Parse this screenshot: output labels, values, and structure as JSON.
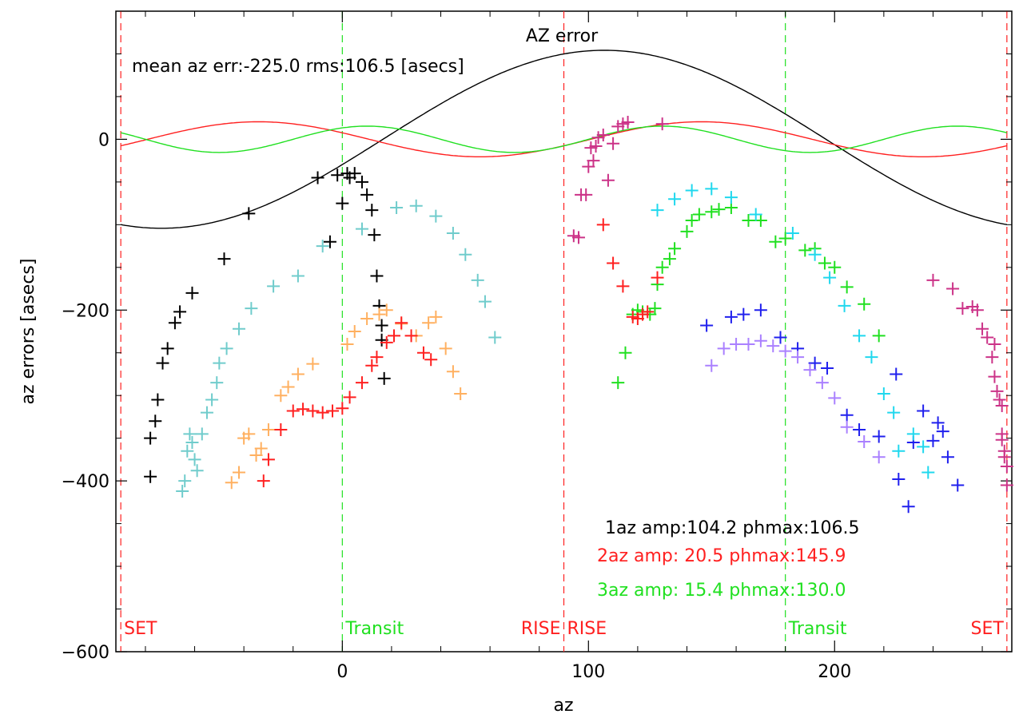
{
  "chart_data": {
    "type": "scatter",
    "title": "AZ error",
    "xlabel": "az",
    "ylabel": "az errors [asecs]",
    "xlim": [
      -92,
      272
    ],
    "ylim": [
      -600,
      150
    ],
    "xticks": [
      0,
      100,
      200
    ],
    "yticks": [
      -600,
      -400,
      -200,
      0
    ],
    "annotation": "mean az err:-225.0 rms:106.5 [asecs]",
    "legend": [
      {
        "text": "1az amp:104.2 phmax:106.5",
        "color": "#000000"
      },
      {
        "text": "2az amp: 20.5 phmax:145.9",
        "color": "#ff2020"
      },
      {
        "text": "3az amp: 15.4 phmax:130.0",
        "color": "#20e020"
      }
    ],
    "harmonics": [
      {
        "k": 1,
        "amp": 104.2,
        "phmax": 106.5,
        "color": "#000000"
      },
      {
        "k": 2,
        "amp": 20.5,
        "phmax": 145.9,
        "color": "#ff2020"
      },
      {
        "k": 3,
        "amp": 15.4,
        "phmax": 130.0,
        "color": "#20e020"
      }
    ],
    "vlines": [
      {
        "x": -90,
        "color": "#ff2020",
        "label": "SET",
        "label_side": "right"
      },
      {
        "x": 0,
        "color": "#20e020",
        "label": "Transit",
        "label_side": "right"
      },
      {
        "x": 90,
        "color": "#ff2020",
        "label": "RISE",
        "label_side": "left"
      },
      {
        "x": 90,
        "color": "#ff2020",
        "label": "RISE",
        "label_side": "right"
      },
      {
        "x": 180,
        "color": "#20e020",
        "label": "Transit",
        "label_side": "right"
      },
      {
        "x": 270,
        "color": "#ff2020",
        "label": "SET",
        "label_side": "left"
      }
    ],
    "series": [
      {
        "color": "#000000",
        "points": [
          [
            -78,
            -395
          ],
          [
            -78,
            -350
          ],
          [
            -76,
            -330
          ],
          [
            -75,
            -305
          ],
          [
            -73,
            -262
          ],
          [
            -71,
            -245
          ],
          [
            -68,
            -215
          ],
          [
            -66,
            -202
          ],
          [
            -61,
            -180
          ],
          [
            -48,
            -140
          ],
          [
            -38,
            -87
          ],
          [
            -10,
            -45
          ],
          [
            -2,
            -42
          ],
          [
            5,
            -40
          ],
          [
            8,
            -50
          ],
          [
            10,
            -65
          ],
          [
            12,
            -83
          ],
          [
            13,
            -112
          ],
          [
            14,
            -160
          ],
          [
            15,
            -195
          ],
          [
            16,
            -218
          ],
          [
            16,
            -235
          ],
          [
            17,
            -280
          ],
          [
            -5,
            -120
          ],
          [
            0,
            -75
          ],
          [
            2,
            -40
          ],
          [
            3,
            -45
          ]
        ]
      },
      {
        "color": "#70cccc",
        "points": [
          [
            -65,
            -412
          ],
          [
            -64,
            -400
          ],
          [
            -63,
            -365
          ],
          [
            -62,
            -345
          ],
          [
            -61,
            -355
          ],
          [
            -60,
            -375
          ],
          [
            -59,
            -388
          ],
          [
            -57,
            -345
          ],
          [
            -55,
            -320
          ],
          [
            -53,
            -305
          ],
          [
            -51,
            -285
          ],
          [
            -50,
            -262
          ],
          [
            -47,
            -245
          ],
          [
            -42,
            -222
          ],
          [
            -37,
            -198
          ],
          [
            -28,
            -172
          ],
          [
            -18,
            -160
          ],
          [
            -8,
            -125
          ],
          [
            8,
            -105
          ],
          [
            22,
            -80
          ],
          [
            30,
            -78
          ],
          [
            38,
            -90
          ],
          [
            45,
            -110
          ],
          [
            50,
            -135
          ],
          [
            55,
            -165
          ],
          [
            58,
            -190
          ],
          [
            62,
            -232
          ]
        ]
      },
      {
        "color": "#ffb060",
        "points": [
          [
            -45,
            -402
          ],
          [
            -42,
            -390
          ],
          [
            -40,
            -350
          ],
          [
            -38,
            -345
          ],
          [
            -35,
            -370
          ],
          [
            -33,
            -362
          ],
          [
            -30,
            -340
          ],
          [
            -25,
            -300
          ],
          [
            -22,
            -290
          ],
          [
            -18,
            -275
          ],
          [
            -12,
            -263
          ],
          [
            2,
            -240
          ],
          [
            5,
            -225
          ],
          [
            10,
            -210
          ],
          [
            15,
            -205
          ],
          [
            18,
            -200
          ],
          [
            24,
            -216
          ],
          [
            30,
            -230
          ],
          [
            35,
            -215
          ],
          [
            38,
            -208
          ],
          [
            42,
            -245
          ],
          [
            45,
            -272
          ],
          [
            48,
            -298
          ]
        ]
      },
      {
        "color": "#ff2020",
        "points": [
          [
            -32,
            -400
          ],
          [
            -30,
            -375
          ],
          [
            -25,
            -340
          ],
          [
            -20,
            -318
          ],
          [
            -16,
            -316
          ],
          [
            -12,
            -318
          ],
          [
            -8,
            -320
          ],
          [
            -4,
            -318
          ],
          [
            0,
            -315
          ],
          [
            3,
            -302
          ],
          [
            8,
            -285
          ],
          [
            12,
            -265
          ],
          [
            14,
            -255
          ],
          [
            18,
            -238
          ],
          [
            21,
            -230
          ],
          [
            24,
            -215
          ],
          [
            28,
            -230
          ],
          [
            33,
            -250
          ],
          [
            36,
            -258
          ]
        ]
      },
      {
        "color": "#2020ee",
        "points": [
          [
            148,
            -218
          ],
          [
            158,
            -208
          ],
          [
            163,
            -205
          ],
          [
            170,
            -200
          ],
          [
            178,
            -232
          ],
          [
            185,
            -245
          ],
          [
            192,
            -262
          ],
          [
            197,
            -268
          ],
          [
            205,
            -323
          ],
          [
            210,
            -340
          ],
          [
            218,
            -348
          ],
          [
            225,
            -275
          ],
          [
            232,
            -355
          ],
          [
            236,
            -318
          ],
          [
            240,
            -353
          ],
          [
            242,
            -332
          ],
          [
            244,
            -342
          ],
          [
            246,
            -372
          ],
          [
            250,
            -405
          ],
          [
            226,
            -398
          ],
          [
            230,
            -430
          ]
        ]
      },
      {
        "color": "#aa80ff",
        "points": [
          [
            150,
            -265
          ],
          [
            155,
            -245
          ],
          [
            160,
            -240
          ],
          [
            165,
            -240
          ],
          [
            170,
            -236
          ],
          [
            175,
            -242
          ],
          [
            180,
            -248
          ],
          [
            185,
            -255
          ],
          [
            190,
            -270
          ],
          [
            195,
            -285
          ],
          [
            200,
            -303
          ],
          [
            205,
            -337
          ],
          [
            212,
            -354
          ],
          [
            218,
            -372
          ]
        ]
      },
      {
        "color": "#20e020",
        "points": [
          [
            112,
            -285
          ],
          [
            115,
            -250
          ],
          [
            118,
            -205
          ],
          [
            120,
            -200
          ],
          [
            122,
            -202
          ],
          [
            125,
            -205
          ],
          [
            127,
            -198
          ],
          [
            128,
            -170
          ],
          [
            130,
            -150
          ],
          [
            133,
            -140
          ],
          [
            135,
            -128
          ],
          [
            140,
            -108
          ],
          [
            142,
            -95
          ],
          [
            145,
            -88
          ],
          [
            150,
            -85
          ],
          [
            153,
            -82
          ],
          [
            158,
            -80
          ],
          [
            165,
            -95
          ],
          [
            170,
            -95
          ],
          [
            176,
            -120
          ],
          [
            180,
            -116
          ],
          [
            188,
            -130
          ],
          [
            192,
            -128
          ],
          [
            196,
            -145
          ],
          [
            200,
            -150
          ],
          [
            205,
            -173
          ],
          [
            212,
            -193
          ],
          [
            218,
            -230
          ]
        ]
      },
      {
        "color": "#20d8ee",
        "points": [
          [
            128,
            -83
          ],
          [
            135,
            -70
          ],
          [
            142,
            -60
          ],
          [
            150,
            -58
          ],
          [
            158,
            -68
          ],
          [
            168,
            -88
          ],
          [
            183,
            -110
          ],
          [
            192,
            -135
          ],
          [
            198,
            -162
          ],
          [
            204,
            -195
          ],
          [
            210,
            -230
          ],
          [
            215,
            -255
          ],
          [
            220,
            -298
          ],
          [
            224,
            -320
          ],
          [
            226,
            -365
          ],
          [
            232,
            -345
          ],
          [
            236,
            -360
          ],
          [
            238,
            -390
          ]
        ]
      },
      {
        "color": "#cc3388",
        "points": [
          [
            94,
            -113
          ],
          [
            96,
            -115
          ],
          [
            97,
            -65
          ],
          [
            99,
            -65
          ],
          [
            100,
            -32
          ],
          [
            101,
            -10
          ],
          [
            102,
            -25
          ],
          [
            103,
            -8
          ],
          [
            104,
            2
          ],
          [
            106,
            5
          ],
          [
            108,
            -48
          ],
          [
            110,
            -5
          ],
          [
            112,
            15
          ],
          [
            114,
            18
          ],
          [
            116,
            20
          ],
          [
            130,
            18
          ],
          [
            240,
            -165
          ],
          [
            248,
            -175
          ],
          [
            252,
            -198
          ],
          [
            256,
            -196
          ],
          [
            258,
            -200
          ],
          [
            260,
            -222
          ],
          [
            262,
            -232
          ],
          [
            264,
            -255
          ],
          [
            265,
            -278
          ],
          [
            266,
            -295
          ],
          [
            267,
            -305
          ],
          [
            268,
            -312
          ],
          [
            268,
            -345
          ],
          [
            268,
            -352
          ],
          [
            269,
            -365
          ],
          [
            269,
            -372
          ],
          [
            270,
            -383
          ],
          [
            270,
            -405
          ],
          [
            265,
            -240
          ]
        ]
      },
      {
        "color": "#ff2020",
        "points": [
          [
            106,
            -100
          ],
          [
            110,
            -145
          ],
          [
            114,
            -172
          ],
          [
            118,
            -208
          ],
          [
            120,
            -210
          ],
          [
            122,
            -205
          ],
          [
            124,
            -202
          ],
          [
            128,
            -162
          ]
        ]
      }
    ]
  }
}
